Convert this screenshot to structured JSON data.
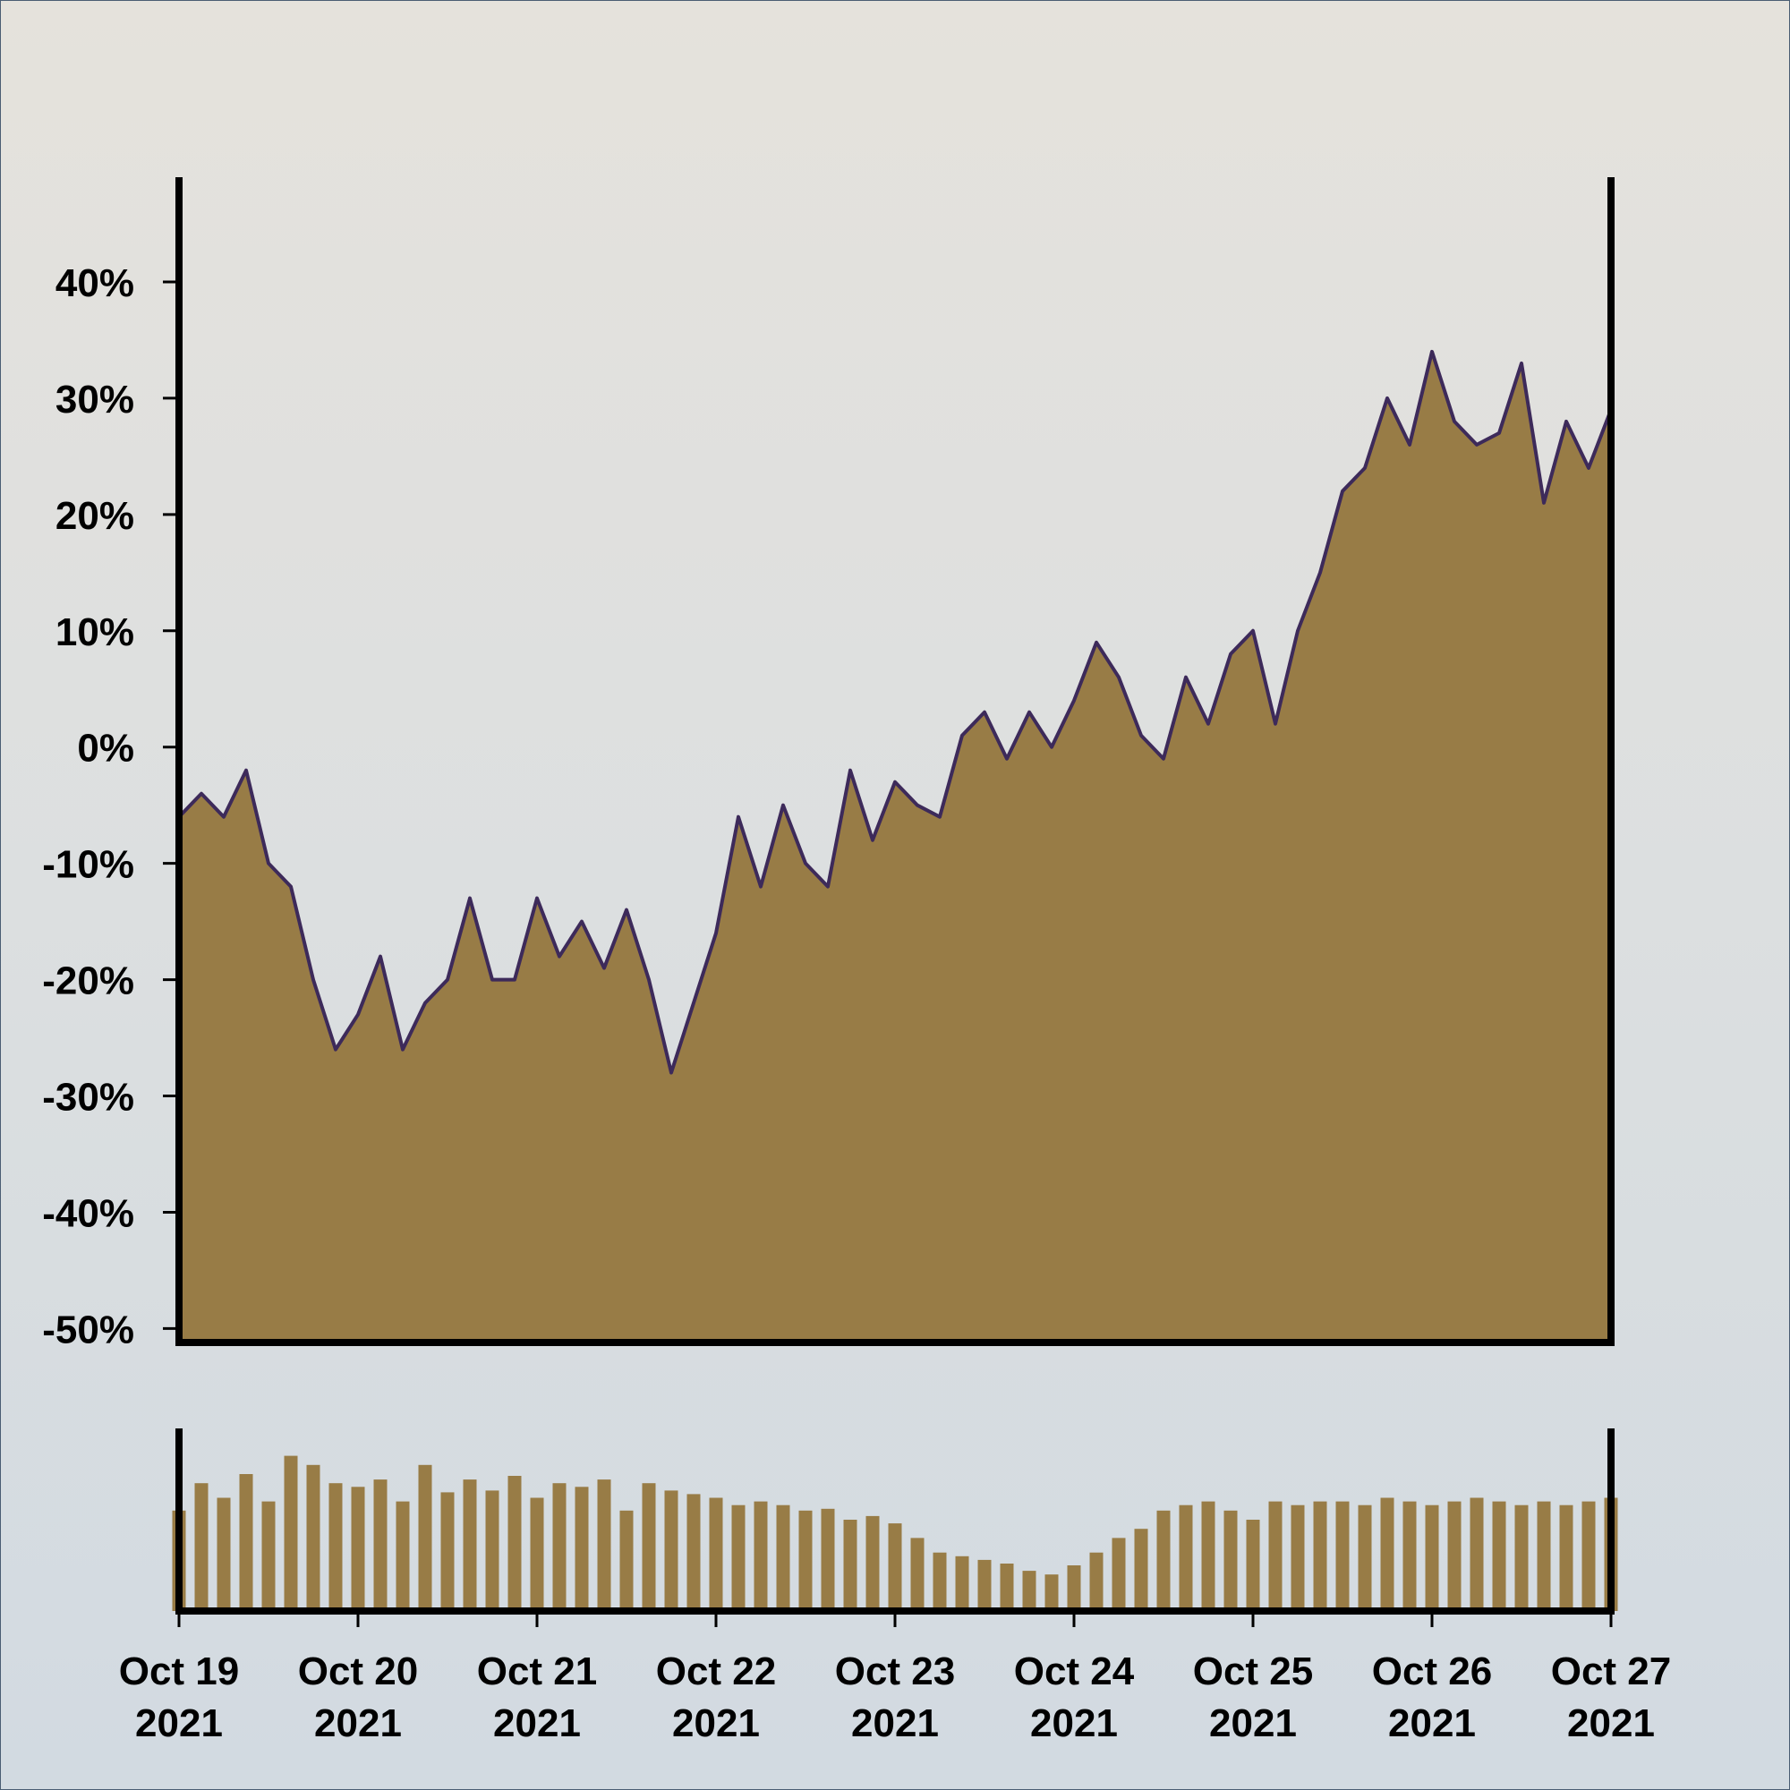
{
  "chart_data": [
    {
      "type": "area",
      "y_tick_labels": [
        "40%",
        "30%",
        "20%",
        "10%",
        "0%",
        "-10%",
        "-20%",
        "-30%",
        "-40%",
        "-50%"
      ],
      "y_ticks": [
        40,
        30,
        20,
        10,
        0,
        -10,
        -20,
        -30,
        -40,
        -50
      ],
      "ylim": [
        -51.2,
        49
      ],
      "xlim": [
        "2021-10-19",
        "2021-10-27"
      ],
      "y_unit": "%",
      "grid": false,
      "legend": "none",
      "x": [
        "2021-10-19 00:00",
        "2021-10-19 03:00",
        "2021-10-19 06:00",
        "2021-10-19 09:00",
        "2021-10-19 12:00",
        "2021-10-19 15:00",
        "2021-10-19 18:00",
        "2021-10-19 21:00",
        "2021-10-20 00:00",
        "2021-10-20 03:00",
        "2021-10-20 06:00",
        "2021-10-20 09:00",
        "2021-10-20 12:00",
        "2021-10-20 15:00",
        "2021-10-20 18:00",
        "2021-10-20 21:00",
        "2021-10-21 00:00",
        "2021-10-21 03:00",
        "2021-10-21 06:00",
        "2021-10-21 09:00",
        "2021-10-21 12:00",
        "2021-10-21 15:00",
        "2021-10-21 18:00",
        "2021-10-21 21:00",
        "2021-10-22 00:00",
        "2021-10-22 03:00",
        "2021-10-22 06:00",
        "2021-10-22 09:00",
        "2021-10-22 12:00",
        "2021-10-22 15:00",
        "2021-10-22 18:00",
        "2021-10-22 21:00",
        "2021-10-23 00:00",
        "2021-10-23 03:00",
        "2021-10-23 06:00",
        "2021-10-23 09:00",
        "2021-10-23 12:00",
        "2021-10-23 15:00",
        "2021-10-23 18:00",
        "2021-10-23 21:00",
        "2021-10-24 00:00",
        "2021-10-24 03:00",
        "2021-10-24 06:00",
        "2021-10-24 09:00",
        "2021-10-24 12:00",
        "2021-10-24 15:00",
        "2021-10-24 18:00",
        "2021-10-24 21:00",
        "2021-10-25 00:00",
        "2021-10-25 03:00",
        "2021-10-25 06:00",
        "2021-10-25 09:00",
        "2021-10-25 12:00",
        "2021-10-25 15:00",
        "2021-10-25 18:00",
        "2021-10-25 21:00",
        "2021-10-26 00:00",
        "2021-10-26 03:00",
        "2021-10-26 06:00",
        "2021-10-26 09:00",
        "2021-10-26 12:00",
        "2021-10-26 15:00",
        "2021-10-26 18:00",
        "2021-10-26 21:00",
        "2021-10-27 00:00"
      ],
      "values": [
        -6,
        -4,
        -6,
        -2,
        -10,
        -12,
        -20,
        -26,
        -23,
        -18,
        -26,
        -22,
        -20,
        -13,
        -20,
        -20,
        -13,
        -18,
        -15,
        -19,
        -14,
        -20,
        -28,
        -22,
        -16,
        -6,
        -12,
        -5,
        -10,
        -12,
        -2,
        -8,
        -3,
        -5,
        -6,
        1,
        3,
        -1,
        3,
        0,
        4,
        9,
        6,
        1,
        -1,
        6,
        2,
        8,
        10,
        2,
        10,
        15,
        22,
        24,
        30,
        26,
        34,
        28,
        26,
        27,
        33,
        21,
        28,
        24,
        29
      ],
      "fill_color": "#987c46",
      "line_color": "#3d2a5a"
    },
    {
      "type": "bar",
      "xlim": [
        "2021-10-19",
        "2021-10-27"
      ],
      "x_tick_labels": [
        "Oct 19\n2021",
        "Oct 20\n2021",
        "Oct 21\n2021",
        "Oct 22\n2021",
        "Oct 23\n2021",
        "Oct 24\n2021",
        "Oct 25\n2021",
        "Oct 26\n2021",
        "Oct 27\n2021"
      ],
      "x_ticks": [
        "2021-10-19",
        "2021-10-20",
        "2021-10-21",
        "2021-10-22",
        "2021-10-23",
        "2021-10-24",
        "2021-10-25",
        "2021-10-26",
        "2021-10-27"
      ],
      "ylim": [
        0,
        1
      ],
      "x": [
        "2021-10-19 00:00",
        "2021-10-19 03:00",
        "2021-10-19 06:00",
        "2021-10-19 09:00",
        "2021-10-19 12:00",
        "2021-10-19 15:00",
        "2021-10-19 18:00",
        "2021-10-19 21:00",
        "2021-10-20 00:00",
        "2021-10-20 03:00",
        "2021-10-20 06:00",
        "2021-10-20 09:00",
        "2021-10-20 12:00",
        "2021-10-20 15:00",
        "2021-10-20 18:00",
        "2021-10-20 21:00",
        "2021-10-21 00:00",
        "2021-10-21 03:00",
        "2021-10-21 06:00",
        "2021-10-21 09:00",
        "2021-10-21 12:00",
        "2021-10-21 15:00",
        "2021-10-21 18:00",
        "2021-10-21 21:00",
        "2021-10-22 00:00",
        "2021-10-22 03:00",
        "2021-10-22 06:00",
        "2021-10-22 09:00",
        "2021-10-22 12:00",
        "2021-10-22 15:00",
        "2021-10-22 18:00",
        "2021-10-22 21:00",
        "2021-10-23 00:00",
        "2021-10-23 03:00",
        "2021-10-23 06:00",
        "2021-10-23 09:00",
        "2021-10-23 12:00",
        "2021-10-23 15:00",
        "2021-10-23 18:00",
        "2021-10-23 21:00",
        "2021-10-24 00:00",
        "2021-10-24 03:00",
        "2021-10-24 06:00",
        "2021-10-24 09:00",
        "2021-10-24 12:00",
        "2021-10-24 15:00",
        "2021-10-24 18:00",
        "2021-10-24 21:00",
        "2021-10-25 00:00",
        "2021-10-25 03:00",
        "2021-10-25 06:00",
        "2021-10-25 09:00",
        "2021-10-25 12:00",
        "2021-10-25 15:00",
        "2021-10-25 18:00",
        "2021-10-25 21:00",
        "2021-10-26 00:00",
        "2021-10-26 03:00",
        "2021-10-26 06:00",
        "2021-10-26 09:00",
        "2021-10-26 12:00",
        "2021-10-26 15:00",
        "2021-10-26 18:00",
        "2021-10-26 21:00",
        "2021-10-27 00:00"
      ],
      "values": [
        0.55,
        0.7,
        0.62,
        0.75,
        0.6,
        0.85,
        0.8,
        0.7,
        0.68,
        0.72,
        0.6,
        0.8,
        0.65,
        0.72,
        0.66,
        0.74,
        0.62,
        0.7,
        0.68,
        0.72,
        0.55,
        0.7,
        0.66,
        0.64,
        0.62,
        0.58,
        0.6,
        0.58,
        0.55,
        0.56,
        0.5,
        0.52,
        0.48,
        0.4,
        0.32,
        0.3,
        0.28,
        0.26,
        0.22,
        0.2,
        0.25,
        0.32,
        0.4,
        0.45,
        0.55,
        0.58,
        0.6,
        0.55,
        0.5,
        0.6,
        0.58,
        0.6,
        0.6,
        0.58,
        0.62,
        0.6,
        0.58,
        0.6,
        0.62,
        0.6,
        0.58,
        0.6,
        0.58,
        0.6,
        0.62
      ],
      "bar_color": "#987c46"
    }
  ]
}
